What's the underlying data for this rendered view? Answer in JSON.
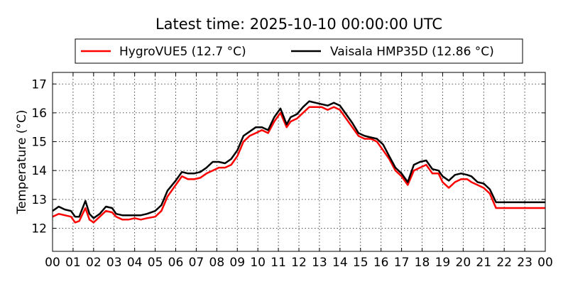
{
  "chart_data": {
    "type": "line",
    "title": "Latest time: 2025-10-10 00:00:00 UTC",
    "xlabel": "",
    "ylabel": "Temperature (°C)",
    "xlim": [
      0,
      24
    ],
    "ylim": [
      11.2,
      17.4
    ],
    "x_ticks": [
      "00",
      "01",
      "02",
      "03",
      "04",
      "05",
      "06",
      "07",
      "08",
      "09",
      "10",
      "11",
      "12",
      "13",
      "14",
      "15",
      "16",
      "17",
      "18",
      "19",
      "20",
      "21",
      "22",
      "23",
      "00"
    ],
    "y_ticks": [
      12,
      13,
      14,
      15,
      16,
      17
    ],
    "grid": true,
    "legend_position": "top-center",
    "series": [
      {
        "name": "HygroVUE5 (12.7 °C)",
        "color": "#ff0000",
        "x": [
          0,
          0.3,
          0.6,
          0.9,
          1.1,
          1.3,
          1.6,
          1.8,
          2.0,
          2.3,
          2.6,
          2.9,
          3.1,
          3.4,
          3.7,
          4.0,
          4.3,
          4.6,
          5.0,
          5.3,
          5.6,
          6.0,
          6.3,
          6.6,
          6.9,
          7.2,
          7.5,
          7.8,
          8.1,
          8.4,
          8.7,
          9.0,
          9.3,
          9.6,
          9.9,
          10.2,
          10.5,
          10.8,
          11.1,
          11.4,
          11.6,
          11.9,
          12.2,
          12.5,
          12.8,
          13.1,
          13.4,
          13.7,
          14.0,
          14.3,
          14.6,
          14.9,
          15.2,
          15.5,
          15.8,
          16.1,
          16.4,
          16.7,
          17.0,
          17.3,
          17.6,
          17.9,
          18.2,
          18.5,
          18.8,
          19.0,
          19.3,
          19.6,
          19.9,
          20.2,
          20.4,
          20.7,
          21.0,
          21.3,
          21.6,
          21.9,
          22.2,
          22.5,
          22.8,
          23.1,
          23.4,
          23.7,
          24.0
        ],
        "values": [
          12.4,
          12.5,
          12.45,
          12.4,
          12.2,
          12.25,
          12.7,
          12.3,
          12.2,
          12.4,
          12.6,
          12.55,
          12.4,
          12.3,
          12.3,
          12.35,
          12.3,
          12.35,
          12.4,
          12.6,
          13.1,
          13.5,
          13.8,
          13.7,
          13.7,
          13.75,
          13.9,
          14.0,
          14.1,
          14.1,
          14.2,
          14.5,
          15.0,
          15.2,
          15.3,
          15.4,
          15.3,
          15.7,
          16.0,
          15.5,
          15.7,
          15.8,
          16.0,
          16.2,
          16.2,
          16.2,
          16.1,
          16.2,
          16.1,
          15.8,
          15.5,
          15.2,
          15.1,
          15.1,
          15.0,
          14.7,
          14.4,
          14.0,
          13.8,
          13.5,
          14.0,
          14.1,
          14.2,
          13.9,
          13.9,
          13.6,
          13.4,
          13.6,
          13.7,
          13.7,
          13.6,
          13.5,
          13.4,
          13.2,
          12.7,
          12.7,
          12.7,
          12.7,
          12.7,
          12.7,
          12.7,
          12.7,
          12.7
        ]
      },
      {
        "name": "Vaisala HMP35D (12.86 °C)",
        "color": "#000000",
        "x": [
          0,
          0.3,
          0.6,
          0.9,
          1.1,
          1.3,
          1.6,
          1.8,
          2.0,
          2.3,
          2.6,
          2.9,
          3.1,
          3.4,
          3.7,
          4.0,
          4.3,
          4.6,
          5.0,
          5.3,
          5.6,
          6.0,
          6.3,
          6.6,
          6.9,
          7.2,
          7.5,
          7.8,
          8.1,
          8.4,
          8.7,
          9.0,
          9.3,
          9.6,
          9.9,
          10.2,
          10.5,
          10.8,
          11.1,
          11.4,
          11.6,
          11.9,
          12.2,
          12.5,
          12.8,
          13.1,
          13.4,
          13.7,
          14.0,
          14.3,
          14.6,
          14.9,
          15.2,
          15.5,
          15.8,
          16.1,
          16.4,
          16.7,
          17.0,
          17.3,
          17.6,
          17.9,
          18.2,
          18.5,
          18.8,
          19.0,
          19.3,
          19.6,
          19.9,
          20.2,
          20.4,
          20.7,
          21.0,
          21.3,
          21.6,
          21.9,
          22.2,
          22.5,
          22.8,
          23.1,
          23.4,
          23.7,
          24.0
        ],
        "values": [
          12.6,
          12.75,
          12.65,
          12.6,
          12.4,
          12.4,
          12.95,
          12.5,
          12.35,
          12.5,
          12.75,
          12.7,
          12.5,
          12.45,
          12.45,
          12.45,
          12.45,
          12.5,
          12.6,
          12.8,
          13.3,
          13.65,
          13.95,
          13.9,
          13.9,
          13.95,
          14.1,
          14.3,
          14.3,
          14.25,
          14.4,
          14.7,
          15.2,
          15.35,
          15.5,
          15.5,
          15.4,
          15.85,
          16.15,
          15.6,
          15.85,
          15.95,
          16.2,
          16.4,
          16.35,
          16.3,
          16.25,
          16.35,
          16.25,
          15.95,
          15.65,
          15.3,
          15.2,
          15.15,
          15.1,
          14.9,
          14.5,
          14.1,
          13.9,
          13.6,
          14.2,
          14.3,
          14.35,
          14.05,
          14.0,
          13.8,
          13.65,
          13.85,
          13.9,
          13.85,
          13.8,
          13.6,
          13.55,
          13.35,
          12.9,
          12.9,
          12.9,
          12.9,
          12.9,
          12.9,
          12.9,
          12.9,
          12.9
        ]
      }
    ]
  }
}
